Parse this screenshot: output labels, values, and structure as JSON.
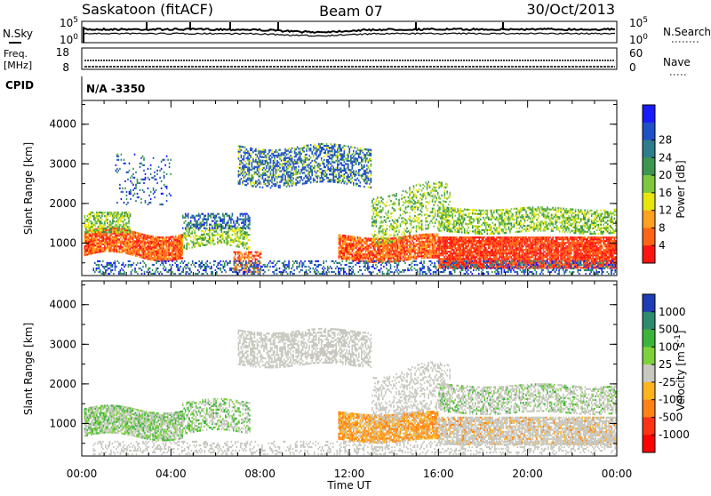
{
  "header": {
    "station": "Saskatoon (fitACF)",
    "beam": "Beam 07",
    "date": "30/Oct/2013"
  },
  "panels": {
    "nsky": {
      "label": "N.Sky",
      "left_ticks": [
        "10^5",
        "10^0"
      ],
      "right_label": "N.Search",
      "right_ticks": [
        "10^5",
        "10^0"
      ]
    },
    "freq": {
      "label_lines": [
        "Freq.",
        "[MHz]"
      ],
      "left_ticks": [
        "18",
        "8"
      ],
      "right_label": "Nave",
      "right_ticks": [
        "60",
        "0"
      ]
    },
    "cpid": {
      "label": "CPID",
      "value": "N/A -3350"
    }
  },
  "chart_data": [
    {
      "type": "heatmap",
      "ylabel": "Slant Range [km]",
      "xlabel": "",
      "x_range": [
        "00:00",
        "24:00"
      ],
      "ylim": [
        180,
        4600
      ],
      "yticks": [
        "1000",
        "2000",
        "3000",
        "4000"
      ],
      "colorbar": {
        "label": "Power [dB]",
        "ticks": [
          "4",
          "8",
          "12",
          "16",
          "20",
          "24",
          "28"
        ],
        "colors": [
          "#1a1aff",
          "#1e50c8",
          "#2d7d8c",
          "#3c9650",
          "#7dc83c",
          "#e6e60a",
          "#ffa01e",
          "#ff6414",
          "#ff1414"
        ]
      },
      "regions": [
        {
          "t0": 0.0,
          "t1": 1.5,
          "r0": 800,
          "r1": 1500,
          "level": "high"
        },
        {
          "t0": 1.5,
          "t1": 4.5,
          "r0": 600,
          "r1": 1300,
          "level": "high"
        },
        {
          "t0": 4.5,
          "t1": 7.5,
          "r0": 1000,
          "r1": 1800,
          "level": "mid"
        },
        {
          "t0": 7.5,
          "t1": 13.0,
          "r0": 2400,
          "r1": 3500,
          "level": "low"
        },
        {
          "t0": 12.0,
          "t1": 16.0,
          "r0": 600,
          "r1": 1200,
          "level": "high"
        },
        {
          "t0": 16.0,
          "t1": 24.0,
          "r0": 500,
          "r1": 1200,
          "level": "high"
        },
        {
          "t0": 16.0,
          "t1": 24.0,
          "r0": 1300,
          "r1": 2000,
          "level": "mid"
        }
      ]
    },
    {
      "type": "heatmap",
      "ylabel": "Slant Range [km]",
      "xlabel": "Time UT",
      "x_range": [
        "00:00",
        "24:00"
      ],
      "xticks": [
        "00:00",
        "04:00",
        "08:00",
        "12:00",
        "16:00",
        "20:00",
        "00:00"
      ],
      "ylim": [
        180,
        4600
      ],
      "yticks": [
        "1000",
        "2000",
        "3000",
        "4000"
      ],
      "colorbar": {
        "label": "Velocity [m s^-1]",
        "ticks": [
          "1000",
          "500",
          "100",
          "25",
          "-25",
          "-100",
          "-500",
          "-1000"
        ],
        "colors": [
          "#1e3cb4",
          "#2d8c6e",
          "#3cb43c",
          "#7dd23c",
          "#c8c8c0",
          "#ffb41e",
          "#ff8214",
          "#ff3214",
          "#ff0000"
        ]
      }
    }
  ]
}
